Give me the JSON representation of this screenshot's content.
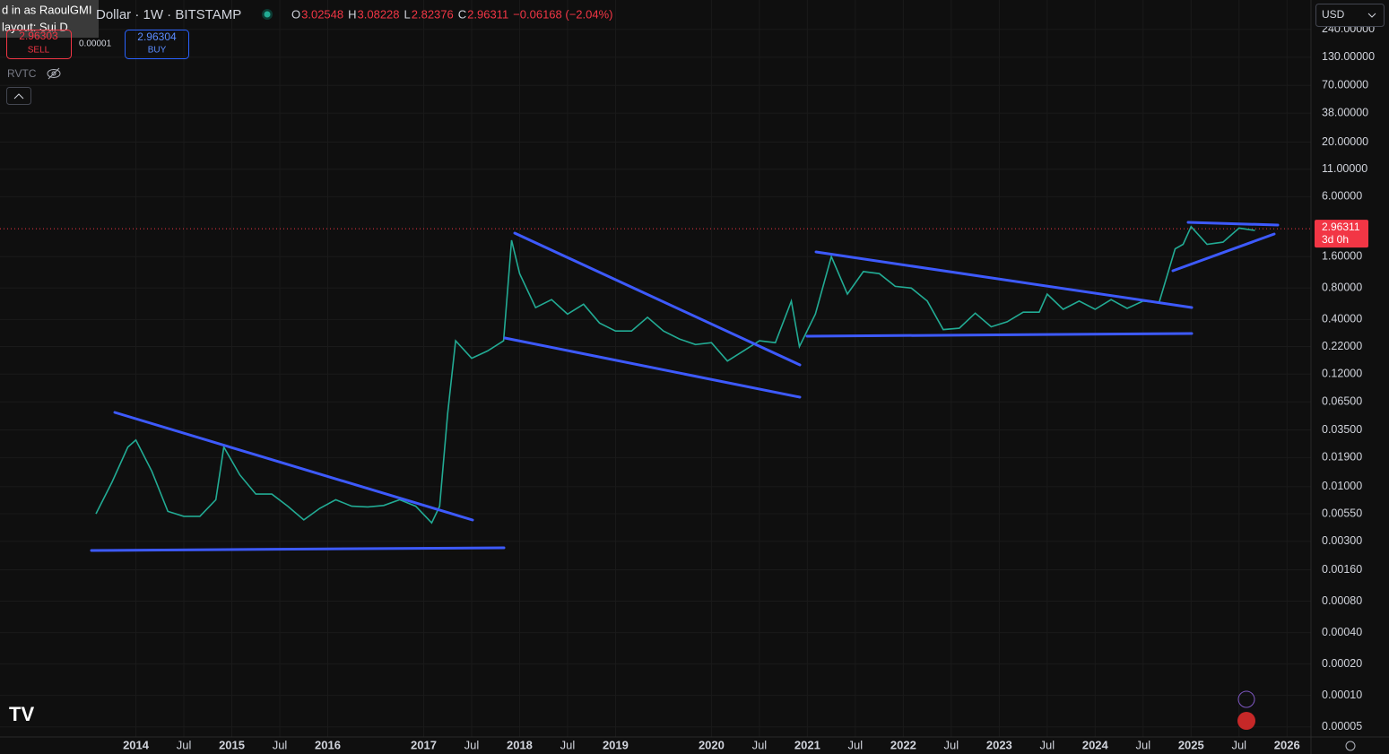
{
  "header": {
    "session": [
      "d in as RaoulGMI",
      "layout: Sui D"
    ],
    "symbol": "Dollar · 1W · BITSTAMP",
    "ohlc": [
      {
        "label": "O",
        "value": "3.02548"
      },
      {
        "label": "H",
        "value": "3.08228"
      },
      {
        "label": "L",
        "value": "2.82376"
      },
      {
        "label": "C",
        "value": "2.96311"
      }
    ],
    "change": "−0.06168 (−2.04%)",
    "sell_price": "2.96303",
    "sell": "SELL",
    "spread": "0.00001",
    "buy_price": "2.96304",
    "buy": "BUY",
    "indicator": "RVTC",
    "currency": "USD"
  },
  "chart_data": {
    "type": "line",
    "color": "#22ab94",
    "log_scale": true,
    "grid": true,
    "x": [
      "2013-08",
      "2013-10",
      "2013-12",
      "2014-01",
      "2014-03",
      "2014-05",
      "2014-07",
      "2014-09",
      "2014-11",
      "2014-12",
      "2015-02",
      "2015-04",
      "2015-06",
      "2015-08",
      "2015-10",
      "2015-12",
      "2016-02",
      "2016-04",
      "2016-06",
      "2016-08",
      "2016-10",
      "2016-12",
      "2017-02",
      "2017-03",
      "2017-04",
      "2017-05",
      "2017-07",
      "2017-09",
      "2017-11",
      "2017-12",
      "2018-01",
      "2018-03",
      "2018-05",
      "2018-07",
      "2018-09",
      "2018-11",
      "2019-01",
      "2019-03",
      "2019-05",
      "2019-07",
      "2019-09",
      "2019-11",
      "2020-01",
      "2020-03",
      "2020-05",
      "2020-07",
      "2020-09",
      "2020-11",
      "2020-12",
      "2021-02",
      "2021-04",
      "2021-06",
      "2021-08",
      "2021-10",
      "2021-12",
      "2022-02",
      "2022-04",
      "2022-06",
      "2022-08",
      "2022-10",
      "2022-12",
      "2023-02",
      "2023-04",
      "2023-06",
      "2023-07",
      "2023-09",
      "2023-11",
      "2024-01",
      "2024-03",
      "2024-05",
      "2024-07",
      "2024-09",
      "2024-11",
      "2024-12",
      "2025-01",
      "2025-03",
      "2025-05",
      "2025-07",
      "2025-09"
    ],
    "values": [
      0.0055,
      0.011,
      0.024,
      0.028,
      0.014,
      0.0058,
      0.0052,
      0.0052,
      0.0075,
      0.024,
      0.013,
      0.0085,
      0.0085,
      0.0065,
      0.0048,
      0.0062,
      0.0075,
      0.0065,
      0.0064,
      0.0066,
      0.0075,
      0.0065,
      0.0045,
      0.0065,
      0.05,
      0.25,
      0.17,
      0.2,
      0.25,
      2.3,
      1.1,
      0.52,
      0.62,
      0.45,
      0.56,
      0.37,
      0.31,
      0.31,
      0.42,
      0.31,
      0.26,
      0.23,
      0.24,
      0.16,
      0.2,
      0.25,
      0.24,
      0.6,
      0.22,
      0.45,
      1.6,
      0.7,
      1.15,
      1.1,
      0.83,
      0.8,
      0.6,
      0.32,
      0.33,
      0.46,
      0.34,
      0.38,
      0.47,
      0.47,
      0.7,
      0.5,
      0.6,
      0.5,
      0.62,
      0.51,
      0.6,
      0.58,
      1.9,
      2.1,
      3.1,
      2.1,
      2.2,
      3.0,
      2.85
    ],
    "xlim": [
      "2012-08",
      "2026-04"
    ],
    "xticks": [
      {
        "value": "2014-01",
        "label": "2014"
      },
      {
        "value": "2014-07",
        "label": "Jul"
      },
      {
        "value": "2015-01",
        "label": "2015"
      },
      {
        "value": "2015-07",
        "label": "Jul"
      },
      {
        "value": "2016-01",
        "label": "2016"
      },
      {
        "value": "2017-01",
        "label": "2017"
      },
      {
        "value": "2017-07",
        "label": "Jul"
      },
      {
        "value": "2018-01",
        "label": "2018"
      },
      {
        "value": "2018-07",
        "label": "Jul"
      },
      {
        "value": "2019-01",
        "label": "2019"
      },
      {
        "value": "2020-01",
        "label": "2020"
      },
      {
        "value": "2020-07",
        "label": "Jul"
      },
      {
        "value": "2021-01",
        "label": "2021"
      },
      {
        "value": "2021-07",
        "label": "Jul"
      },
      {
        "value": "2022-01",
        "label": "2022"
      },
      {
        "value": "2022-07",
        "label": "Jul"
      },
      {
        "value": "2023-01",
        "label": "2023"
      },
      {
        "value": "2023-07",
        "label": "Jul"
      },
      {
        "value": "2024-01",
        "label": "2024"
      },
      {
        "value": "2024-07",
        "label": "Jul"
      },
      {
        "value": "2025-01",
        "label": "2025"
      },
      {
        "value": "2025-07",
        "label": "Jul"
      },
      {
        "value": "2026-01",
        "label": "2026"
      }
    ],
    "ylim": [
      4e-05,
      460
    ],
    "yticks": [
      {
        "value": 240,
        "label": "240.00000"
      },
      {
        "value": 130,
        "label": "130.00000"
      },
      {
        "value": 70,
        "label": "70.00000"
      },
      {
        "value": 38,
        "label": "38.00000"
      },
      {
        "value": 20,
        "label": "20.00000"
      },
      {
        "value": 11,
        "label": "11.00000"
      },
      {
        "value": 6,
        "label": "6.00000"
      },
      {
        "value": 1.6,
        "label": "1.60000"
      },
      {
        "value": 0.8,
        "label": "0.80000"
      },
      {
        "value": 0.4,
        "label": "0.40000"
      },
      {
        "value": 0.22,
        "label": "0.22000"
      },
      {
        "value": 0.12,
        "label": "0.12000"
      },
      {
        "value": 0.065,
        "label": "0.06500"
      },
      {
        "value": 0.035,
        "label": "0.03500"
      },
      {
        "value": 0.019,
        "label": "0.01900"
      },
      {
        "value": 0.01,
        "label": "0.01000"
      },
      {
        "value": 0.0055,
        "label": "0.00550"
      },
      {
        "value": 0.003,
        "label": "0.00300"
      },
      {
        "value": 0.0016,
        "label": "0.00160"
      },
      {
        "value": 0.0008,
        "label": "0.00080"
      },
      {
        "value": 0.0004,
        "label": "0.00040"
      },
      {
        "value": 0.0002,
        "label": "0.00020"
      },
      {
        "value": 0.0001,
        "label": "0.00010"
      },
      {
        "value": 5e-05,
        "label": "0.00005"
      }
    ],
    "last_price": 2.96311,
    "countdown": "3d 0h"
  }
}
